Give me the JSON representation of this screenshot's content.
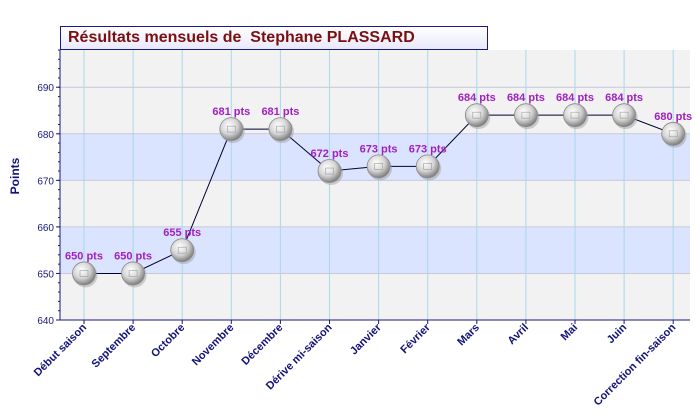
{
  "chart_data": {
    "type": "line",
    "title": "Résultats mensuels de  Stephane PLASSARD",
    "ylabel": "Points",
    "xlabel": "",
    "ylim": [
      640,
      698
    ],
    "y_ticks": [
      640,
      650,
      660,
      670,
      680,
      690
    ],
    "grid": true,
    "categories": [
      "Début saison",
      "Septembre",
      "Octobre",
      "Novembre",
      "Décembre",
      "Dérive mi-saison",
      "Janvier",
      "Février",
      "Mars",
      "Avril",
      "Mai",
      "Juin",
      "Correction fin-saison"
    ],
    "values": [
      650,
      650,
      655,
      681,
      681,
      672,
      673,
      673,
      684,
      684,
      684,
      684,
      680
    ],
    "data_labels": [
      "650 pts",
      "650 pts",
      "655 pts",
      "681 pts",
      "681 pts",
      "672 pts",
      "673 pts",
      "673 pts",
      "684 pts",
      "684 pts",
      "684 pts",
      "684 pts",
      "680 pts"
    ]
  },
  "colors": {
    "axis": "#1a1a7a",
    "tick_text": "#1a1a7a",
    "category_text": "#12127a",
    "data_label": "#a020c0",
    "band_blue": "#dbe4ff",
    "band_gray": "#f2f2f2",
    "line": "#000033",
    "title_text": "#7a1010"
  }
}
